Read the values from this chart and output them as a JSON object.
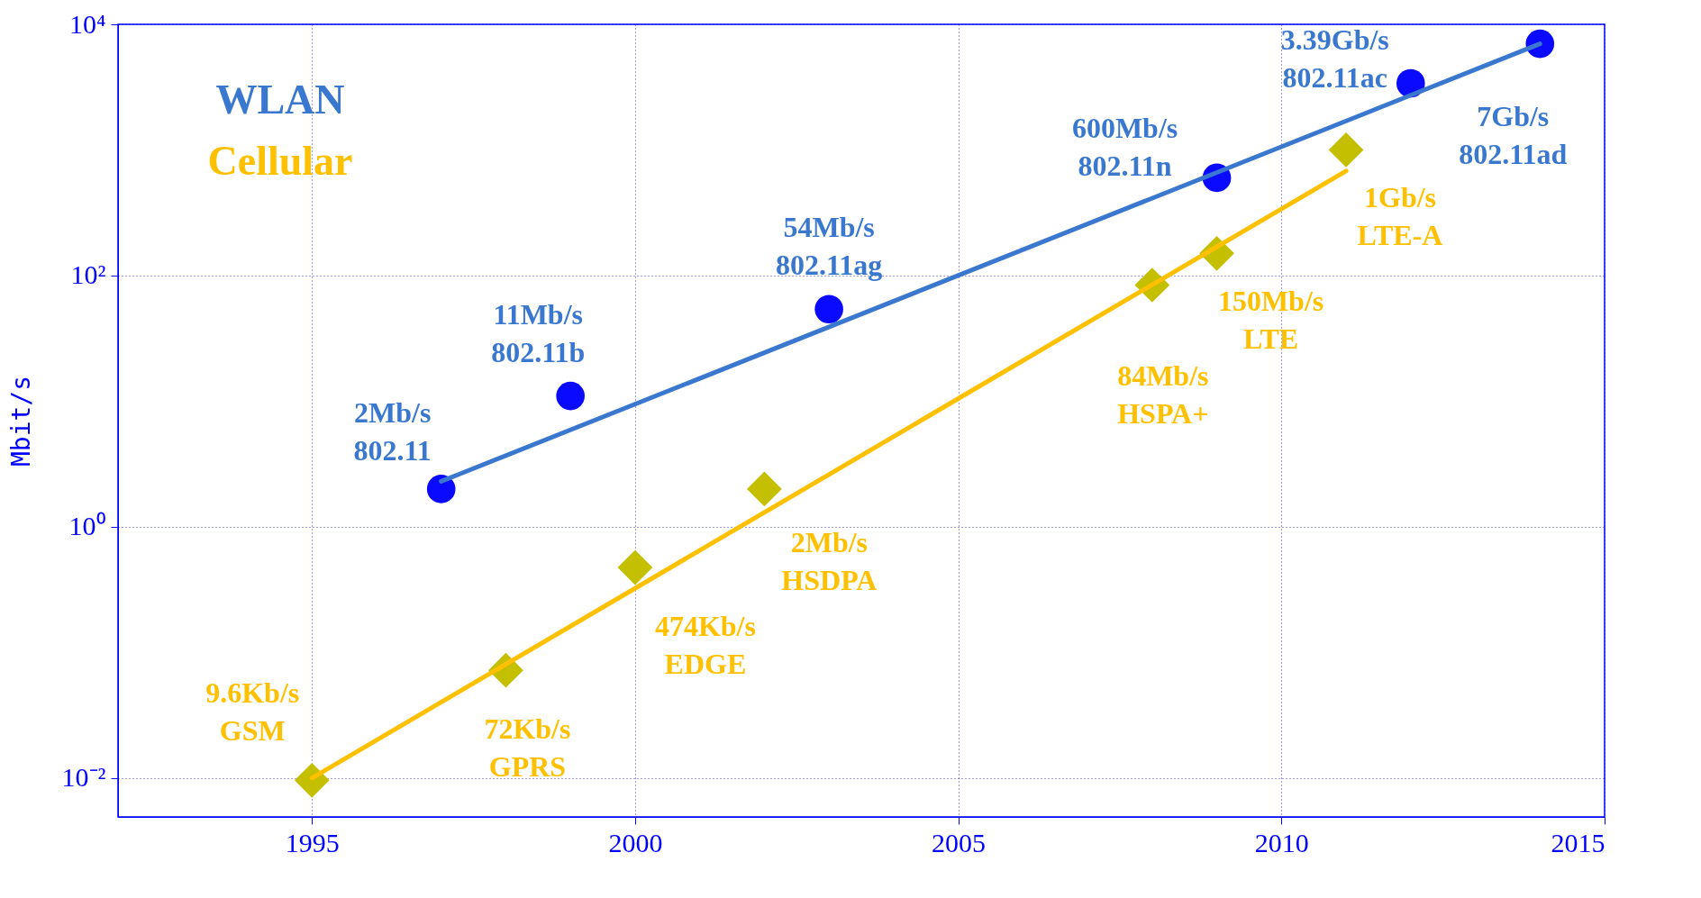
{
  "chart_data": {
    "type": "scatter",
    "ylabel": "Mbit/s",
    "log": "y",
    "grid": true,
    "legend": "top left",
    "xlim": [
      1992,
      2015
    ],
    "xticks": [
      1995,
      2000,
      2005,
      2010,
      2015
    ],
    "ylim": [
      0.0049,
      10000
    ],
    "yticks": [
      {
        "value": 0.01,
        "label": "10⁻²"
      },
      {
        "value": 1,
        "label": "10⁰"
      },
      {
        "value": 100,
        "label": "10²"
      },
      {
        "value": 10000,
        "label": "10⁴"
      }
    ],
    "series": [
      {
        "marker": "circle",
        "color": "#0a0aff",
        "x": [
          1997,
          1999,
          2003,
          2009,
          2012,
          2014
        ],
        "values": [
          2,
          11,
          54,
          600,
          3390,
          7000
        ]
      },
      {
        "type": "line",
        "name": "WLAN",
        "color": "#3a78d0",
        "x": [
          1997,
          2014
        ],
        "values": [
          2.3,
          7000
        ]
      },
      {
        "marker": "diamond",
        "color": "#c4bf00",
        "x": [
          1995,
          1998,
          2000,
          2002,
          2008,
          2009,
          2011
        ],
        "values": [
          0.0096,
          0.072,
          0.474,
          2,
          84,
          150,
          1000
        ]
      },
      {
        "type": "line",
        "name": "Cellular",
        "color": "#ffc000",
        "x": [
          1995,
          2011
        ],
        "values": [
          0.01,
          680
        ]
      }
    ],
    "annotations": [
      {
        "text": "2Mb/s\n802.11",
        "x": 1997,
        "y": 2
      },
      {
        "text": "11Mb/s\n802.11b",
        "x": 1999,
        "y": 11
      },
      {
        "text": "54Mb/s\n802.11ag",
        "x": 2003,
        "y": 54
      },
      {
        "text": "600Mb/s\n802.11n",
        "x": 2009,
        "y": 600
      },
      {
        "text": "3.39Gb/s\n802.11ac",
        "x": 2012,
        "y": 3390
      },
      {
        "text": "7Gb/s\n802.11ad",
        "x": 2014,
        "y": 7000
      },
      {
        "text": "9.6Kb/s\nGSM",
        "x": 1995,
        "y": 0.0096
      },
      {
        "text": "72Kb/s\nGPRS",
        "x": 1998,
        "y": 0.072
      },
      {
        "text": "474Kb/s\nEDGE",
        "x": 2000,
        "y": 0.474
      },
      {
        "text": "2Mb/s\nHSDPA",
        "x": 2002,
        "y": 2
      },
      {
        "text": "84Mb/s\nHSPA+",
        "x": 2008,
        "y": 84
      },
      {
        "text": "150Mb/s\nLTE",
        "x": 2009,
        "y": 150
      },
      {
        "text": "1Gb/s\nLTE-A",
        "x": 2011,
        "y": 1000
      }
    ]
  }
}
